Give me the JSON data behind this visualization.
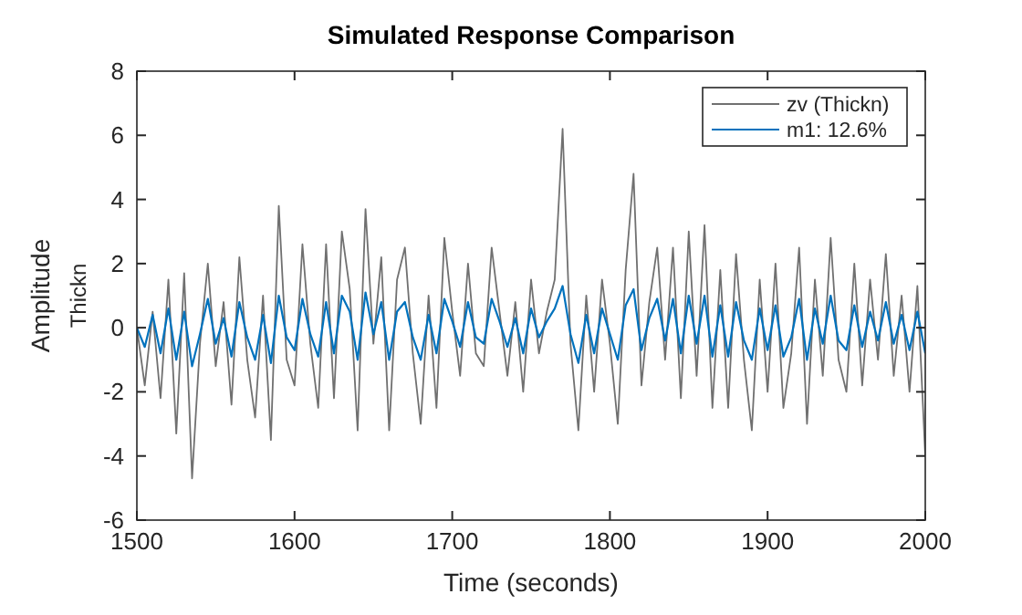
{
  "chart_data": {
    "type": "line",
    "title": "Simulated Response Comparison",
    "xlabel": "Time (seconds)",
    "ylabel": "Amplitude\nThickn",
    "x": [
      1500,
      1505,
      1510,
      1515,
      1520,
      1525,
      1530,
      1535,
      1540,
      1545,
      1550,
      1555,
      1560,
      1565,
      1570,
      1575,
      1580,
      1585,
      1590,
      1595,
      1600,
      1605,
      1610,
      1615,
      1620,
      1625,
      1630,
      1635,
      1640,
      1645,
      1650,
      1655,
      1660,
      1665,
      1670,
      1675,
      1680,
      1685,
      1690,
      1695,
      1700,
      1705,
      1710,
      1715,
      1720,
      1725,
      1730,
      1735,
      1740,
      1745,
      1750,
      1755,
      1760,
      1765,
      1770,
      1775,
      1780,
      1785,
      1790,
      1795,
      1800,
      1805,
      1810,
      1815,
      1820,
      1825,
      1830,
      1835,
      1840,
      1845,
      1850,
      1855,
      1860,
      1865,
      1870,
      1875,
      1880,
      1885,
      1890,
      1895,
      1900,
      1905,
      1910,
      1915,
      1920,
      1925,
      1930,
      1935,
      1940,
      1945,
      1950,
      1955,
      1960,
      1965,
      1970,
      1975,
      1980,
      1985,
      1990,
      1995,
      2000
    ],
    "series": [
      {
        "name": "zv (Thickn)",
        "color": "#707070",
        "values": [
          0,
          -1.8,
          0.5,
          -2.2,
          1.5,
          -3.3,
          1.7,
          -4.7,
          -0.5,
          2.0,
          -1.2,
          0.8,
          -2.4,
          2.2,
          -1.0,
          -2.8,
          1.0,
          -3.5,
          3.8,
          -1.0,
          -1.8,
          2.6,
          -0.5,
          -2.5,
          2.6,
          -2.2,
          3.0,
          1.2,
          -3.2,
          3.7,
          -0.5,
          2.2,
          -3.2,
          1.5,
          2.5,
          -0.8,
          -3.0,
          1.0,
          -2.5,
          2.8,
          0.5,
          -1.5,
          2.0,
          -0.8,
          -1.2,
          2.5,
          0.5,
          -1.5,
          0.8,
          -2.0,
          1.5,
          -0.8,
          0.5,
          1.5,
          6.2,
          -0.5,
          -3.2,
          1.0,
          -2.0,
          1.5,
          -0.5,
          -3.0,
          1.8,
          4.8,
          -1.8,
          0.8,
          2.5,
          -1.0,
          2.5,
          -2.2,
          3.0,
          -1.5,
          3.2,
          -2.5,
          1.8,
          -2.5,
          2.3,
          -1.0,
          -3.2,
          1.5,
          -2.0,
          2.0,
          -2.5,
          -0.8,
          2.5,
          -3.0,
          1.5,
          -1.5,
          2.8,
          -1.0,
          -2.0,
          2.0,
          -1.8,
          1.5,
          -1.0,
          2.3,
          -1.5,
          1.0,
          -2.0,
          1.3,
          -4.0
        ]
      },
      {
        "name": "m1: 12.6%",
        "color": "#0072bd",
        "values": [
          0,
          -0.6,
          0.4,
          -0.8,
          0.6,
          -1.0,
          0.5,
          -1.2,
          -0.2,
          0.9,
          -0.5,
          0.3,
          -0.9,
          0.8,
          -0.3,
          -1.0,
          0.4,
          -1.1,
          1.0,
          -0.3,
          -0.7,
          0.9,
          -0.2,
          -0.9,
          0.8,
          -0.8,
          1.0,
          0.5,
          -1.0,
          1.1,
          -0.2,
          0.8,
          -1.0,
          0.5,
          0.8,
          -0.3,
          -1.0,
          0.4,
          -0.8,
          0.9,
          0.2,
          -0.6,
          0.8,
          -0.3,
          -0.5,
          0.9,
          0.2,
          -0.6,
          0.3,
          -0.8,
          0.6,
          -0.3,
          0.2,
          0.6,
          1.3,
          -0.2,
          -1.1,
          0.4,
          -0.8,
          0.6,
          -0.2,
          -1.0,
          0.7,
          1.2,
          -0.7,
          0.3,
          0.9,
          -0.4,
          0.9,
          -0.8,
          1.0,
          -0.5,
          1.0,
          -0.9,
          0.7,
          -0.9,
          0.8,
          -0.4,
          -1.0,
          0.6,
          -0.7,
          0.7,
          -0.9,
          -0.3,
          0.9,
          -1.0,
          0.6,
          -0.5,
          1.0,
          -0.4,
          -0.7,
          0.7,
          -0.6,
          0.5,
          -0.4,
          0.8,
          -0.5,
          0.4,
          -0.7,
          0.5,
          -0.8
        ]
      }
    ],
    "xlim": [
      1500,
      2000
    ],
    "xticks": [
      1500,
      1600,
      1700,
      1800,
      1900,
      2000
    ],
    "ylim": [
      -6,
      8
    ],
    "yticks": [
      -6,
      -4,
      -2,
      0,
      2,
      4,
      6,
      8
    ],
    "grid": false,
    "legend": "top right",
    "marker": "none",
    "line_style": "solid"
  }
}
